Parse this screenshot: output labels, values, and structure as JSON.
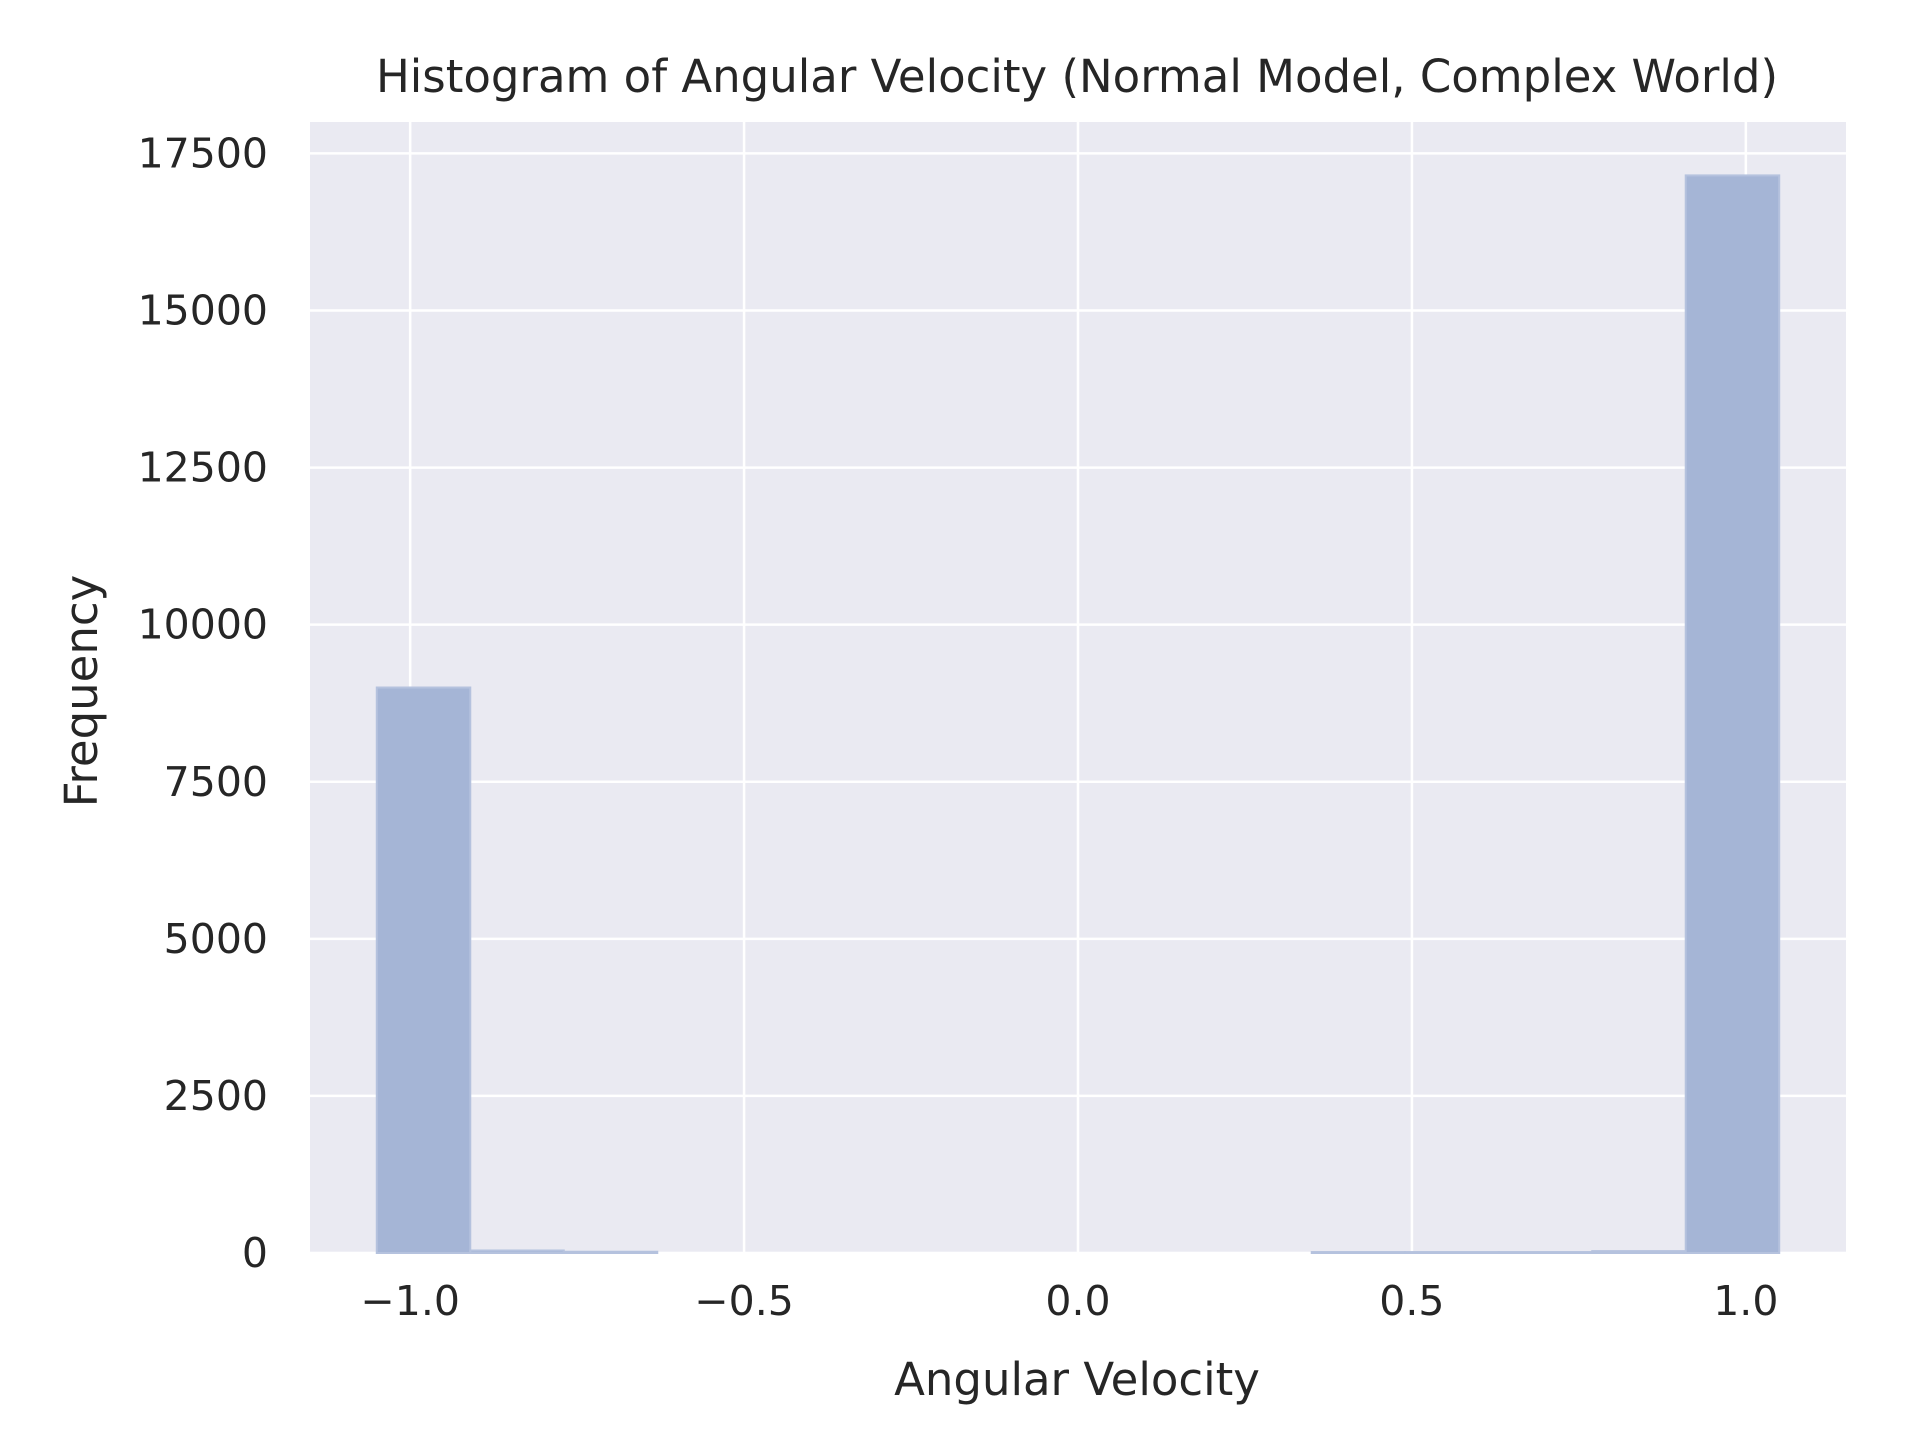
{
  "chart_data": {
    "type": "bar",
    "title": "Histogram of Angular Velocity (Normal Model, Complex World)",
    "xlabel": "Angular Velocity",
    "ylabel": "Frequency",
    "xlim": [
      -1.15,
      1.15
    ],
    "ylim": [
      0,
      18000
    ],
    "xticks": [
      {
        "value": -1.0,
        "label": "−1.0"
      },
      {
        "value": -0.5,
        "label": "−0.5"
      },
      {
        "value": 0.0,
        "label": "0.0"
      },
      {
        "value": 0.5,
        "label": "0.5"
      },
      {
        "value": 1.0,
        "label": "1.0"
      }
    ],
    "yticks": [
      {
        "value": 0,
        "label": "0"
      },
      {
        "value": 2500,
        "label": "2500"
      },
      {
        "value": 5000,
        "label": "5000"
      },
      {
        "value": 7500,
        "label": "7500"
      },
      {
        "value": 10000,
        "label": "10000"
      },
      {
        "value": 12500,
        "label": "12500"
      },
      {
        "value": 15000,
        "label": "15000"
      },
      {
        "value": 17500,
        "label": "17500"
      }
    ],
    "bins": [
      {
        "x0": -1.05,
        "x1": -0.91,
        "count": 9000
      },
      {
        "x0": -0.91,
        "x1": -0.77,
        "count": 40
      },
      {
        "x0": -0.77,
        "x1": -0.63,
        "count": 20
      },
      {
        "x0": -0.63,
        "x1": -0.49,
        "count": 0
      },
      {
        "x0": -0.49,
        "x1": -0.35,
        "count": 0
      },
      {
        "x0": -0.35,
        "x1": -0.21,
        "count": 0
      },
      {
        "x0": -0.21,
        "x1": -0.07,
        "count": 0
      },
      {
        "x0": -0.07,
        "x1": 0.07,
        "count": 0
      },
      {
        "x0": 0.07,
        "x1": 0.21,
        "count": 0
      },
      {
        "x0": 0.21,
        "x1": 0.35,
        "count": 0
      },
      {
        "x0": 0.35,
        "x1": 0.49,
        "count": 15
      },
      {
        "x0": 0.49,
        "x1": 0.63,
        "count": 15
      },
      {
        "x0": 0.63,
        "x1": 0.77,
        "count": 15
      },
      {
        "x0": 0.77,
        "x1": 0.91,
        "count": 30
      },
      {
        "x0": 0.91,
        "x1": 1.05,
        "count": 17150
      }
    ],
    "grid": true,
    "colors": {
      "plot_background": "#eaeaf2",
      "grid": "#ffffff",
      "bar_fill": "#a5b5d6",
      "bar_edge": "#b5c2de"
    }
  }
}
